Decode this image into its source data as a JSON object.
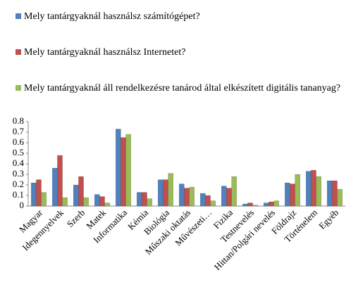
{
  "chart_data": {
    "type": "bar",
    "categories": [
      "Magyar",
      "Idegennyelvek",
      "Szerb",
      "Matek",
      "Informatika",
      "Kémia",
      "Biológia",
      "Műszaki oktatás",
      "Művészeti…",
      "Fizika",
      "Testnevelés",
      "Hittan/Polgári nevelés",
      "Földrajz",
      "Történelem",
      "Egyéb"
    ],
    "series": [
      {
        "name": "Mely tantárgyaknál használsz számítógépet?",
        "color": "#4f81bd",
        "values": [
          0.22,
          0.36,
          0.2,
          0.11,
          0.73,
          0.13,
          0.25,
          0.21,
          0.12,
          0.19,
          0.02,
          0.03,
          0.22,
          0.33,
          0.24
        ]
      },
      {
        "name": "Mely tantárgyaknál használsz Internetet?",
        "color": "#c0504d",
        "values": [
          0.25,
          0.48,
          0.28,
          0.09,
          0.65,
          0.13,
          0.25,
          0.17,
          0.1,
          0.17,
          0.03,
          0.04,
          0.21,
          0.34,
          0.24
        ]
      },
      {
        "name": "Mely tantárgyaknál áll rendelkezésre tanárod által elkészített digitális tananyag?",
        "color": "#9bbb59",
        "values": [
          0.13,
          0.08,
          0.08,
          0.03,
          0.68,
          0.07,
          0.31,
          0.18,
          0.05,
          0.28,
          0.01,
          0.05,
          0.3,
          0.28,
          0.16
        ]
      }
    ],
    "ylim": [
      0,
      0.8
    ],
    "yticks": [
      0,
      0.1,
      0.2,
      0.3,
      0.4,
      0.5,
      0.6,
      0.7,
      0.8
    ],
    "grid": false
  }
}
